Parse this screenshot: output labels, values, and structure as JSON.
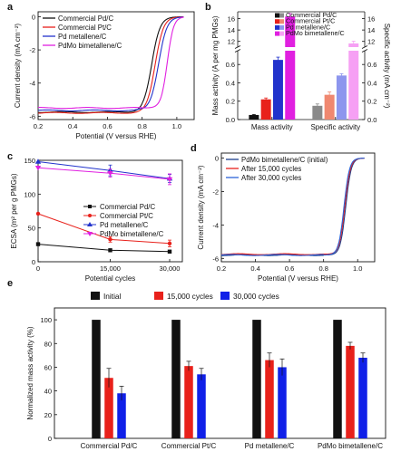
{
  "chart_data": [
    {
      "panel": "a",
      "type": "line",
      "xlabel": "Potential (V versus RHE)",
      "ylabel": "Current density (mA cm⁻²)",
      "xlim": [
        0.2,
        1.1
      ],
      "ylim": [
        -6.2,
        0.3
      ],
      "xticks": [
        "0.2",
        "0.4",
        "0.6",
        "0.8",
        "1.0"
      ],
      "yticks": [
        "0",
        "-2",
        "-4",
        "-6"
      ],
      "legend_position": "top-left",
      "series": [
        {
          "name": "Commercial Pd/C",
          "color": "#111111",
          "jlim": -5.75,
          "e_half": 0.855,
          "width": 0.024
        },
        {
          "name": "Commercial Pt/C",
          "color": "#e8211b",
          "jlim": -5.8,
          "e_half": 0.875,
          "width": 0.024
        },
        {
          "name": "Pd metallene/C",
          "color": "#2233cc",
          "jlim": -5.65,
          "e_half": 0.895,
          "width": 0.024
        },
        {
          "name": "PdMo bimetallene/C",
          "color": "#e020e0",
          "jlim": -5.5,
          "e_half": 0.945,
          "width": 0.018
        }
      ]
    },
    {
      "panel": "b",
      "type": "bar",
      "categories": [
        "Mass activity",
        "Specific activity"
      ],
      "ylabel_left": "Mass activity (A per mg PMGs)",
      "ylabel_right": "Specific activity (mA cm⁻²)",
      "axis_break": true,
      "lower_range": [
        0,
        0.75
      ],
      "upper_range": [
        11,
        17.2
      ],
      "yticks_lower": [
        "0.0",
        "0.2",
        "0.4",
        "0.6"
      ],
      "yticks_upper": [
        "12",
        "14",
        "16"
      ],
      "legend_position": "top-right",
      "series": [
        {
          "name": "Commercial Pd/C",
          "colors": [
            "#111111",
            "#8a8a8a"
          ],
          "values": [
            0.05,
            0.15
          ],
          "errors": [
            0.005,
            0.02
          ]
        },
        {
          "name": "Commercial Pt/C",
          "colors": [
            "#e8211b",
            "#f08870"
          ],
          "values": [
            0.22,
            0.27
          ],
          "errors": [
            0.015,
            0.03
          ]
        },
        {
          "name": "Pd metallene/C",
          "colors": [
            "#2233cc",
            "#8d96ee"
          ],
          "values": [
            0.65,
            0.48
          ],
          "errors": [
            0.03,
            0.02
          ]
        },
        {
          "name": "PdMo bimetallene/C",
          "colors": [
            "#e020e0",
            "#f6a0f4"
          ],
          "values": [
            16.37,
            11.64
          ],
          "errors": [
            0.5,
            0.4
          ]
        }
      ]
    },
    {
      "panel": "c",
      "type": "line",
      "xlabel": "Potential cycles",
      "ylabel": "ECSA (m² per g PMGs)",
      "x": [
        "0",
        "15,000",
        "30,000"
      ],
      "ylim": [
        0,
        150
      ],
      "yticks": [
        "0",
        "50",
        "100",
        "150"
      ],
      "legend_position": "center-right",
      "series": [
        {
          "name": "Commercial Pd/C",
          "color": "#111111",
          "marker": "square",
          "values": [
            26,
            17,
            15
          ],
          "errors": [
            0,
            2,
            2
          ]
        },
        {
          "name": "Commercial Pt/C",
          "color": "#e8211b",
          "marker": "circle",
          "values": [
            71,
            33,
            27
          ],
          "errors": [
            0,
            4,
            5
          ]
        },
        {
          "name": "Pd metallene/C",
          "color": "#2233cc",
          "marker": "triangle-up",
          "values": [
            148,
            135,
            123
          ],
          "errors": [
            0,
            8,
            6
          ]
        },
        {
          "name": "PdMo bimetallene/C",
          "color": "#e020e0",
          "marker": "triangle-down",
          "values": [
            139,
            131,
            122
          ],
          "errors": [
            0,
            6,
            8
          ]
        }
      ]
    },
    {
      "panel": "d",
      "type": "line",
      "xlabel": "Potential (V versus RHE)",
      "ylabel": "Current density (mA cm⁻²)",
      "xlim": [
        0.2,
        1.1
      ],
      "ylim": [
        -6.2,
        0.3
      ],
      "xticks": [
        "0.2",
        "0.4",
        "0.6",
        "0.8",
        "1.0"
      ],
      "yticks": [
        "0",
        "-2",
        "-4",
        "-6"
      ],
      "legend_position": "top-left",
      "series": [
        {
          "name": "PdMo bimetallene/C (initial)",
          "color": "#1d3f8c",
          "jlim": -5.8,
          "e_half": 0.93,
          "width": 0.016
        },
        {
          "name": "After 15,000 cycles",
          "color": "#e8211b",
          "jlim": -5.75,
          "e_half": 0.925,
          "width": 0.016
        },
        {
          "name": "After 30,000 cycles",
          "color": "#2d64d8",
          "jlim": -5.8,
          "e_half": 0.92,
          "width": 0.016
        }
      ]
    },
    {
      "panel": "e",
      "type": "bar",
      "ylabel": "Normalized mass activity (%)",
      "ylim": [
        0,
        110
      ],
      "yticks": [
        "0",
        "20",
        "40",
        "60",
        "80",
        "100"
      ],
      "categories": [
        "Commercial Pd/C",
        "Commercial Pt/C",
        "Pd metallene/C",
        "PdMo bimetallene/C"
      ],
      "legend_position": "top-center",
      "series": [
        {
          "name": "Initial",
          "color": "#111111",
          "values": [
            100,
            100,
            100,
            100
          ],
          "errors": [
            0,
            0,
            0,
            0
          ]
        },
        {
          "name": "15,000 cycles",
          "color": "#e8211b",
          "values": [
            51,
            61,
            66,
            78
          ],
          "errors": [
            8,
            4,
            6,
            3
          ]
        },
        {
          "name": "30,000 cycles",
          "color": "#1020e8",
          "values": [
            38,
            54,
            60,
            68
          ],
          "errors": [
            6,
            5,
            7,
            4
          ]
        }
      ]
    }
  ]
}
